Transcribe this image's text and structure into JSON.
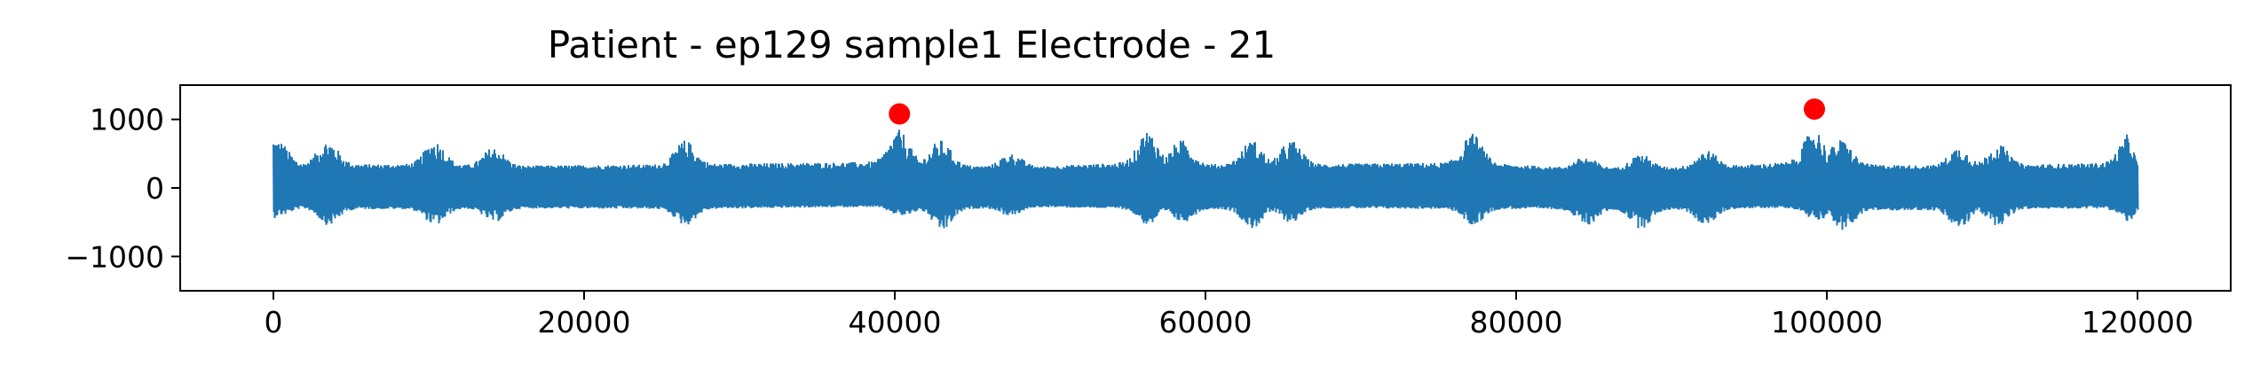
{
  "chart_data": {
    "type": "line",
    "title": "Patient - ep129 sample1 Electrode - 21",
    "xlabel": "",
    "ylabel": "",
    "xlim": [
      -6000,
      126000
    ],
    "ylim": [
      -1500,
      1500
    ],
    "x_ticks": [
      0,
      20000,
      40000,
      60000,
      80000,
      100000,
      120000
    ],
    "x_tick_labels": [
      "0",
      "20000",
      "40000",
      "60000",
      "80000",
      "100000",
      "120000"
    ],
    "y_ticks": [
      1000,
      0,
      -1000
    ],
    "y_tick_labels": [
      "1000",
      "0",
      "−1000"
    ],
    "grid": false,
    "legend": "none",
    "colors": {
      "signal": "#1f77b4",
      "markers": "#ff0000"
    },
    "series": [
      {
        "role": "signal",
        "x": [
          0,
          300,
          3500,
          10400,
          14200,
          26500,
          40300,
          43000,
          47500,
          56300,
          58500,
          63000,
          65500,
          77200,
          84500,
          88000,
          92200,
          99200,
          101000,
          108500,
          111000,
          119500,
          120000
        ],
        "envelope_upper": [
          750,
          700,
          700,
          700,
          600,
          700,
          850,
          700,
          500,
          850,
          700,
          700,
          700,
          800,
          450,
          500,
          550,
          900,
          700,
          600,
          650,
          800,
          350
        ],
        "envelope_lower": [
          -450,
          -400,
          -550,
          -550,
          -500,
          -550,
          -400,
          -650,
          -400,
          -550,
          -500,
          -600,
          -500,
          -550,
          -550,
          -600,
          -550,
          -450,
          -650,
          -600,
          -550,
          -500,
          -350
        ],
        "baseline_band": [
          -230,
          230
        ]
      },
      {
        "role": "markers",
        "x": [
          40300,
          99200
        ],
        "y": [
          1080,
          1150
        ]
      }
    ]
  }
}
